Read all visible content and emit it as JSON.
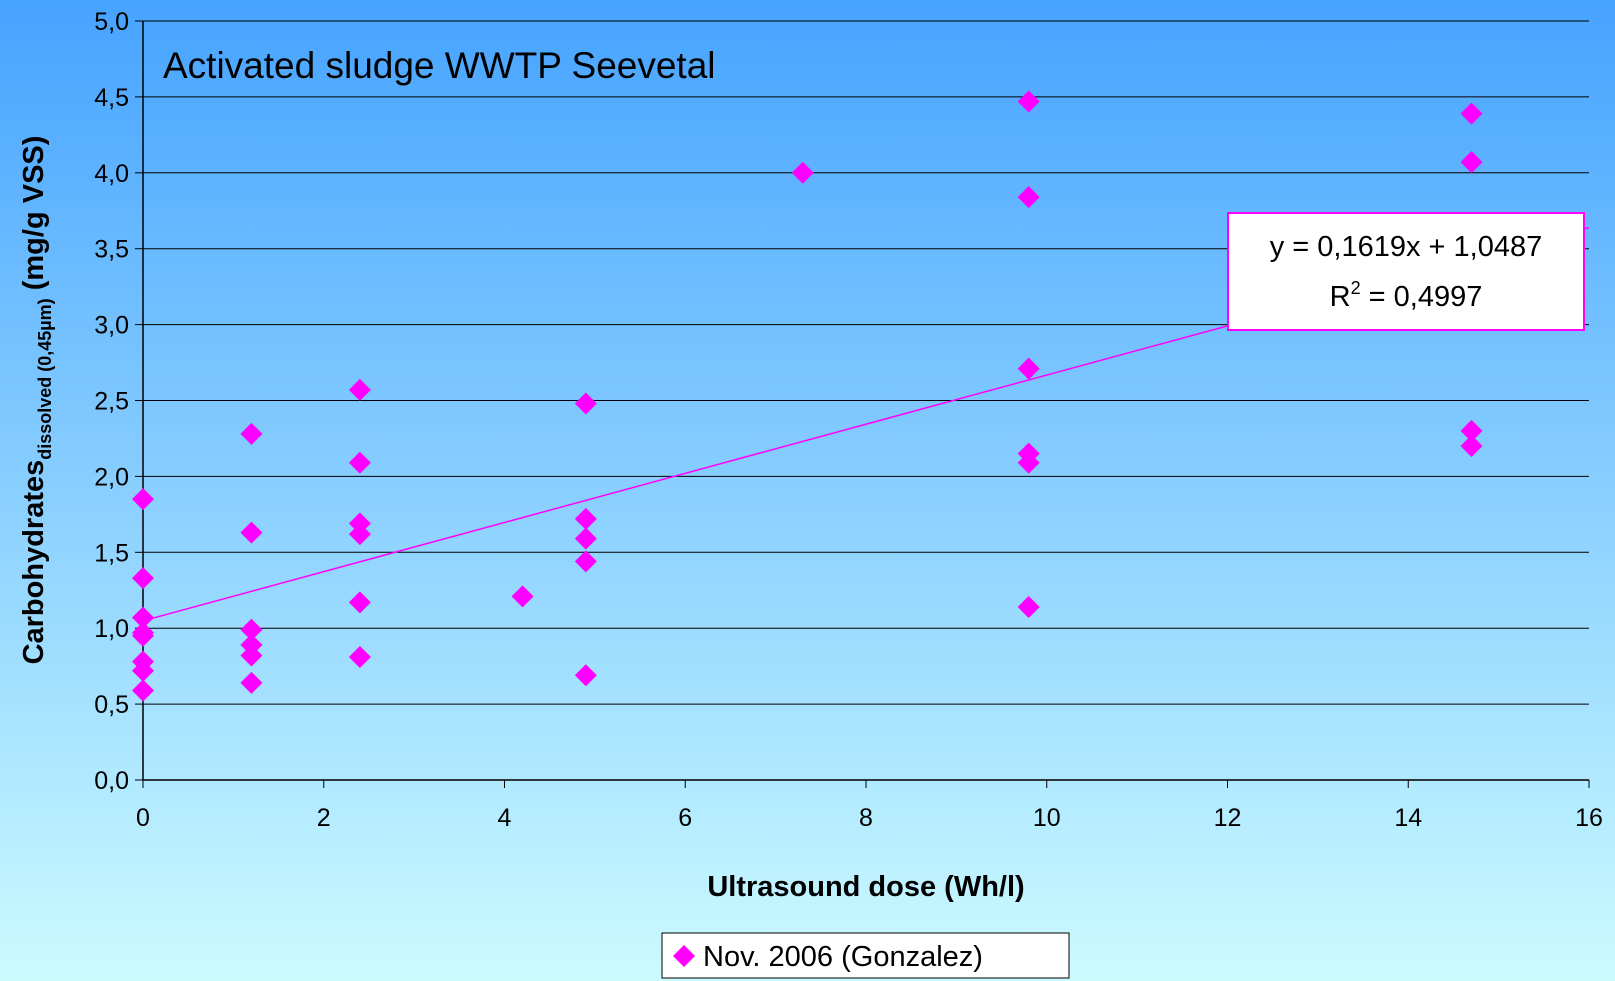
{
  "chart_data": {
    "type": "scatter",
    "title": "Activated sludge WWTP Seevetal",
    "x_label": "Ultrasound dose (Wh/l)",
    "y_label": {
      "main": "Carbohydrates",
      "sub": "dissolved (0,45µm)",
      "unit": " (mg/g VSS)"
    },
    "series": [
      {
        "name": "Nov. 2006 (Gonzalez)",
        "color": "#ff00ff",
        "x": [
          0,
          0,
          0,
          0,
          0,
          0,
          0,
          0,
          1.2,
          1.2,
          1.2,
          1.2,
          1.2,
          1.2,
          2.4,
          2.4,
          2.4,
          2.4,
          2.4,
          2.4,
          4.2,
          4.9,
          4.9,
          4.9,
          4.9,
          4.9,
          7.3,
          9.8,
          9.8,
          9.8,
          9.8,
          9.8,
          9.8,
          14.7,
          14.7,
          14.7,
          14.7
        ],
        "values": [
          1.85,
          1.33,
          1.07,
          0.97,
          0.95,
          0.78,
          0.72,
          0.59,
          2.28,
          1.63,
          0.99,
          0.89,
          0.82,
          0.64,
          2.57,
          2.09,
          1.69,
          1.62,
          1.17,
          0.81,
          1.21,
          2.48,
          1.72,
          1.59,
          1.44,
          0.69,
          4.0,
          4.47,
          3.84,
          2.71,
          2.15,
          2.09,
          1.14,
          4.39,
          4.07,
          2.3,
          2.2
        ]
      }
    ],
    "trendline": {
      "slope": 0.1619,
      "intercept": 1.0487,
      "color": "#ff00ff",
      "equation": "y = 0,1619x + 1,0487",
      "r2": {
        "base": "R",
        "sup": "2",
        "rest": " = 0,4997"
      }
    },
    "xlim": [
      0,
      16
    ],
    "xticks": [
      0,
      2,
      4,
      6,
      8,
      10,
      12,
      14,
      16
    ],
    "ylim": [
      0,
      5
    ],
    "yticks": [
      {
        "value": 0,
        "label": "0,0"
      },
      {
        "value": 0.5,
        "label": "0,5"
      },
      {
        "value": 1,
        "label": "1,0"
      },
      {
        "value": 1.5,
        "label": "1,5"
      },
      {
        "value": 2,
        "label": "2,0"
      },
      {
        "value": 2.5,
        "label": "2,5"
      },
      {
        "value": 3,
        "label": "3,0"
      },
      {
        "value": 3.5,
        "label": "3,5"
      },
      {
        "value": 4,
        "label": "4,0"
      },
      {
        "value": 4.5,
        "label": "4,5"
      },
      {
        "value": 5,
        "label": "5,0"
      }
    ],
    "grid": true,
    "legend": "bottom"
  }
}
